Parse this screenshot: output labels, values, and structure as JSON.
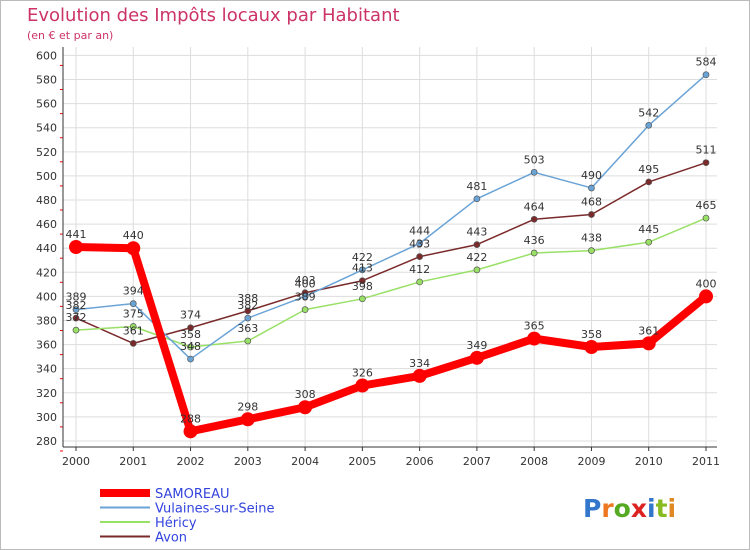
{
  "chart_data": {
    "type": "line",
    "title": "Evolution des Impôts locaux par Habitant",
    "subtitle": "(en € et par an)",
    "x": [
      "2000",
      "2001",
      "2002",
      "2003",
      "2004",
      "2005",
      "2006",
      "2007",
      "2008",
      "2009",
      "2010",
      "2011"
    ],
    "y_ticks": [
      280,
      300,
      320,
      340,
      360,
      380,
      400,
      420,
      440,
      460,
      480,
      500,
      520,
      540,
      560,
      580,
      600
    ],
    "ylim": [
      275,
      607
    ],
    "grid": true,
    "legend_position": "bottom-left",
    "series": [
      {
        "name": "SAMOREAU",
        "color": "#ff0000",
        "values": [
          441,
          440,
          288,
          298,
          308,
          326,
          334,
          349,
          365,
          358,
          361,
          400
        ]
      },
      {
        "name": "Vulaines-sur-Seine",
        "color": "#6aa3d6",
        "values": [
          389,
          394,
          348,
          382,
          400,
          422,
          444,
          481,
          503,
          490,
          542,
          584
        ]
      },
      {
        "name": "Héricy",
        "color": "#99e066",
        "values": [
          372,
          375,
          358,
          363,
          389,
          398,
          412,
          422,
          436,
          438,
          445,
          465
        ]
      },
      {
        "name": "Avon",
        "color": "#7a2a2a",
        "values": [
          382,
          361,
          374,
          388,
          403,
          413,
          433,
          443,
          464,
          468,
          495,
          511
        ]
      }
    ],
    "labels": {
      "SAMOREAU": [
        "441",
        "440",
        "288",
        "298",
        "308",
        "326",
        "334",
        "349",
        "365",
        "358",
        "361",
        "400"
      ],
      "Vulaines-sur-Seine": [
        "389",
        "394",
        "348",
        "382",
        "400",
        "422",
        "444",
        "481",
        "503",
        "490",
        "542",
        "584"
      ],
      "Héricy": [
        "372",
        "375",
        "358",
        "363",
        "389",
        "398",
        "412",
        "422",
        "436",
        "438",
        "445",
        "465"
      ],
      "Avon": [
        "382",
        "361",
        "374",
        "388",
        "403",
        "413",
        "433",
        "443",
        "464",
        "468",
        "495",
        "511"
      ]
    }
  },
  "logo": {
    "text": "Proxiti"
  },
  "colors": {
    "title": "#cc3366",
    "legend_text": "#3344dd",
    "axis": "#333333",
    "grid": "#dddddd",
    "tick_red": "#ff0000"
  }
}
